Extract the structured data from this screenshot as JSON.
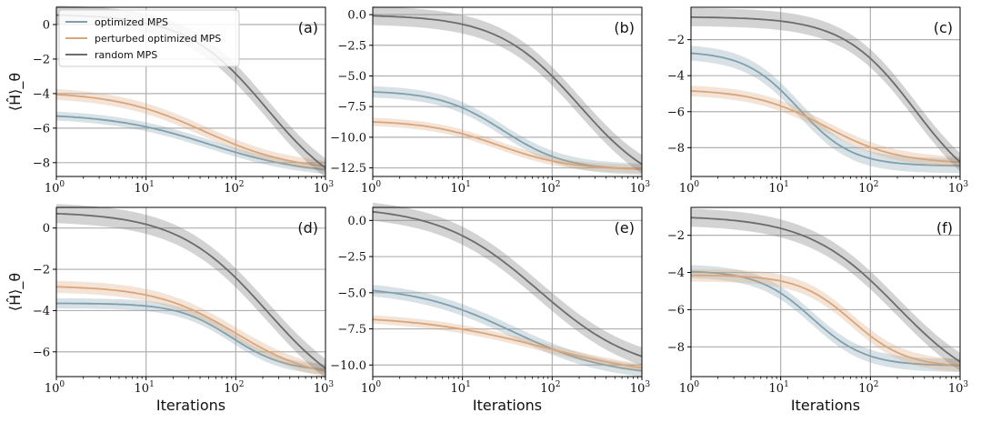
{
  "figure": {
    "xlabel": "Iterations",
    "ylabel": "⟨Ĥ⟩_θ",
    "xlim": [
      1,
      1000
    ],
    "xticks": [
      {
        "base": "10",
        "exp": "0"
      },
      {
        "base": "10",
        "exp": "1"
      },
      {
        "base": "10",
        "exp": "2"
      },
      {
        "base": "10",
        "exp": "3"
      }
    ]
  },
  "legend": [
    {
      "label": "optimized MPS",
      "color": "#7f9fac"
    },
    {
      "label": "perturbed optimized MPS",
      "color": "#d9a57a"
    },
    {
      "label": "random MPS",
      "color": "#6c6c6c"
    }
  ],
  "colors": {
    "optimized": "#7f9fac",
    "perturbed": "#d9a57a",
    "random": "#6c6c6c",
    "grid": "#b0b0b0"
  },
  "chart_data": [
    {
      "panel": "(a)",
      "type": "line",
      "ylim": [
        -8.8,
        1.0
      ],
      "yticks": [
        0,
        -2,
        -4,
        -6,
        -8
      ],
      "ytick_labels": [
        "0",
        "−2",
        "−4",
        "−6",
        "−8"
      ],
      "series": [
        {
          "name": "optimized MPS",
          "start": -5.3,
          "end": -8.4,
          "mid": 1.7,
          "width": 0.55
        },
        {
          "name": "perturbed optimized MPS",
          "start": -4.05,
          "end": -8.2,
          "mid": 1.65,
          "width": 0.5
        },
        {
          "name": "random MPS",
          "start": 0.55,
          "end": -8.3,
          "mid": 2.35,
          "width": 0.45
        }
      ]
    },
    {
      "panel": "(b)",
      "type": "line",
      "ylim": [
        -13.2,
        0.6
      ],
      "yticks": [
        0.0,
        -2.5,
        -5.0,
        -7.5,
        -10.0,
        -12.5
      ],
      "ytick_labels": [
        "0.0",
        "−2.5",
        "−5.0",
        "−7.5",
        "−10.0",
        "−12.5"
      ],
      "series": [
        {
          "name": "optimized MPS",
          "start": -6.3,
          "end": -12.6,
          "mid": 1.45,
          "width": 0.35
        },
        {
          "name": "perturbed optimized MPS",
          "start": -8.75,
          "end": -12.6,
          "mid": 1.4,
          "width": 0.4
        },
        {
          "name": "random MPS",
          "start": -0.1,
          "end": -12.2,
          "mid": 2.3,
          "width": 0.45
        }
      ]
    },
    {
      "panel": "(c)",
      "type": "line",
      "ylim": [
        -9.6,
        -0.2
      ],
      "yticks": [
        -2,
        -4,
        -6,
        -8
      ],
      "ytick_labels": [
        "−2",
        "−4",
        "−6",
        "−8"
      ],
      "series": [
        {
          "name": "optimized MPS",
          "start": -2.75,
          "end": -9.0,
          "mid": 1.2,
          "width": 0.3
        },
        {
          "name": "perturbed optimized MPS",
          "start": -4.85,
          "end": -8.8,
          "mid": 1.5,
          "width": 0.4
        },
        {
          "name": "random MPS",
          "start": -0.75,
          "end": -8.8,
          "mid": 2.5,
          "width": 0.4
        }
      ]
    },
    {
      "panel": "(d)",
      "type": "line",
      "ylim": [
        -7.2,
        1.0
      ],
      "yticks": [
        0,
        -2,
        -4,
        -6
      ],
      "ytick_labels": [
        "0",
        "−2",
        "−4",
        "−6"
      ],
      "series": [
        {
          "name": "optimized MPS",
          "start": -3.65,
          "end": -6.85,
          "mid": 1.95,
          "width": 0.3
        },
        {
          "name": "perturbed optimized MPS",
          "start": -2.85,
          "end": -6.95,
          "mid": 2.0,
          "width": 0.45
        },
        {
          "name": "random MPS",
          "start": 0.7,
          "end": -6.8,
          "mid": 2.35,
          "width": 0.5
        }
      ]
    },
    {
      "panel": "(e)",
      "type": "line",
      "ylim": [
        -10.8,
        0.9
      ],
      "yticks": [
        0.0,
        -2.5,
        -5.0,
        -7.5,
        -10.0
      ],
      "ytick_labels": [
        "0.0",
        "−2.5",
        "−5.0",
        "−7.5",
        "−10.0"
      ],
      "series": [
        {
          "name": "optimized MPS",
          "start": -4.85,
          "end": -10.4,
          "mid": 1.55,
          "width": 0.55
        },
        {
          "name": "perturbed optimized MPS",
          "start": -6.85,
          "end": -10.2,
          "mid": 1.9,
          "width": 0.7
        },
        {
          "name": "random MPS",
          "start": 0.6,
          "end": -9.4,
          "mid": 1.85,
          "width": 0.55
        }
      ]
    },
    {
      "panel": "(f)",
      "type": "line",
      "ylim": [
        -9.6,
        -0.5
      ],
      "yticks": [
        -2,
        -4,
        -6,
        -8
      ],
      "ytick_labels": [
        "−2",
        "−4",
        "−6",
        "−8"
      ],
      "series": [
        {
          "name": "optimized MPS",
          "start": -3.95,
          "end": -9.0,
          "mid": 1.35,
          "width": 0.3
        },
        {
          "name": "perturbed optimized MPS",
          "start": -4.15,
          "end": -9.0,
          "mid": 1.8,
          "width": 0.3
        },
        {
          "name": "random MPS",
          "start": -1.05,
          "end": -8.8,
          "mid": 2.3,
          "width": 0.5
        }
      ]
    }
  ]
}
